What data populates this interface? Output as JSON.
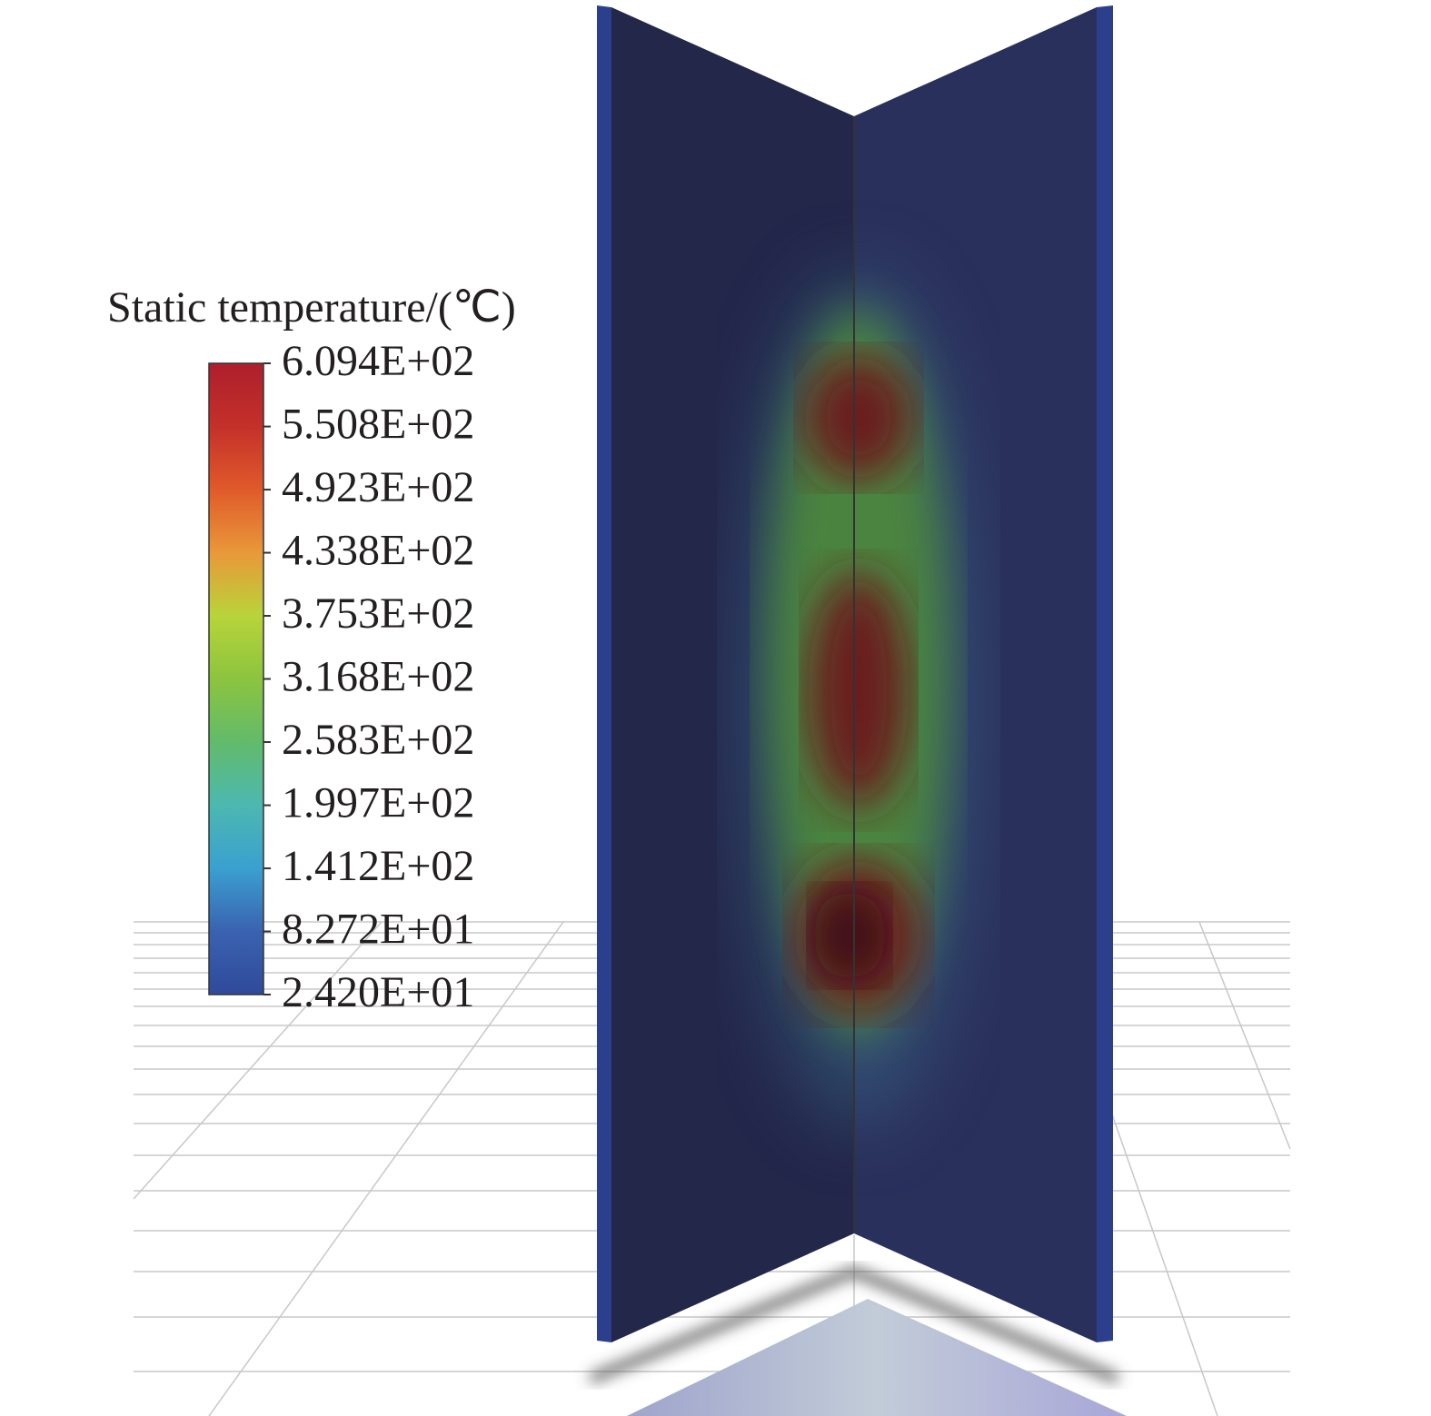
{
  "colorbar": {
    "title": "Static temperature/(℃)",
    "range": [
      24.2,
      609.4
    ],
    "ticks": [
      {
        "value": 609.4,
        "label": "6.094E+02"
      },
      {
        "value": 550.8,
        "label": "5.508E+02"
      },
      {
        "value": 492.3,
        "label": "4.923E+02"
      },
      {
        "value": 433.8,
        "label": "4.338E+02"
      },
      {
        "value": 375.3,
        "label": "3.753E+02"
      },
      {
        "value": 316.8,
        "label": "3.168E+02"
      },
      {
        "value": 258.3,
        "label": "2.583E+02"
      },
      {
        "value": 199.7,
        "label": "1.997E+02"
      },
      {
        "value": 141.2,
        "label": "1.412E+02"
      },
      {
        "value": 82.72,
        "label": "8.272E+01"
      },
      {
        "value": 24.2,
        "label": "2.420E+01"
      }
    ]
  }
}
